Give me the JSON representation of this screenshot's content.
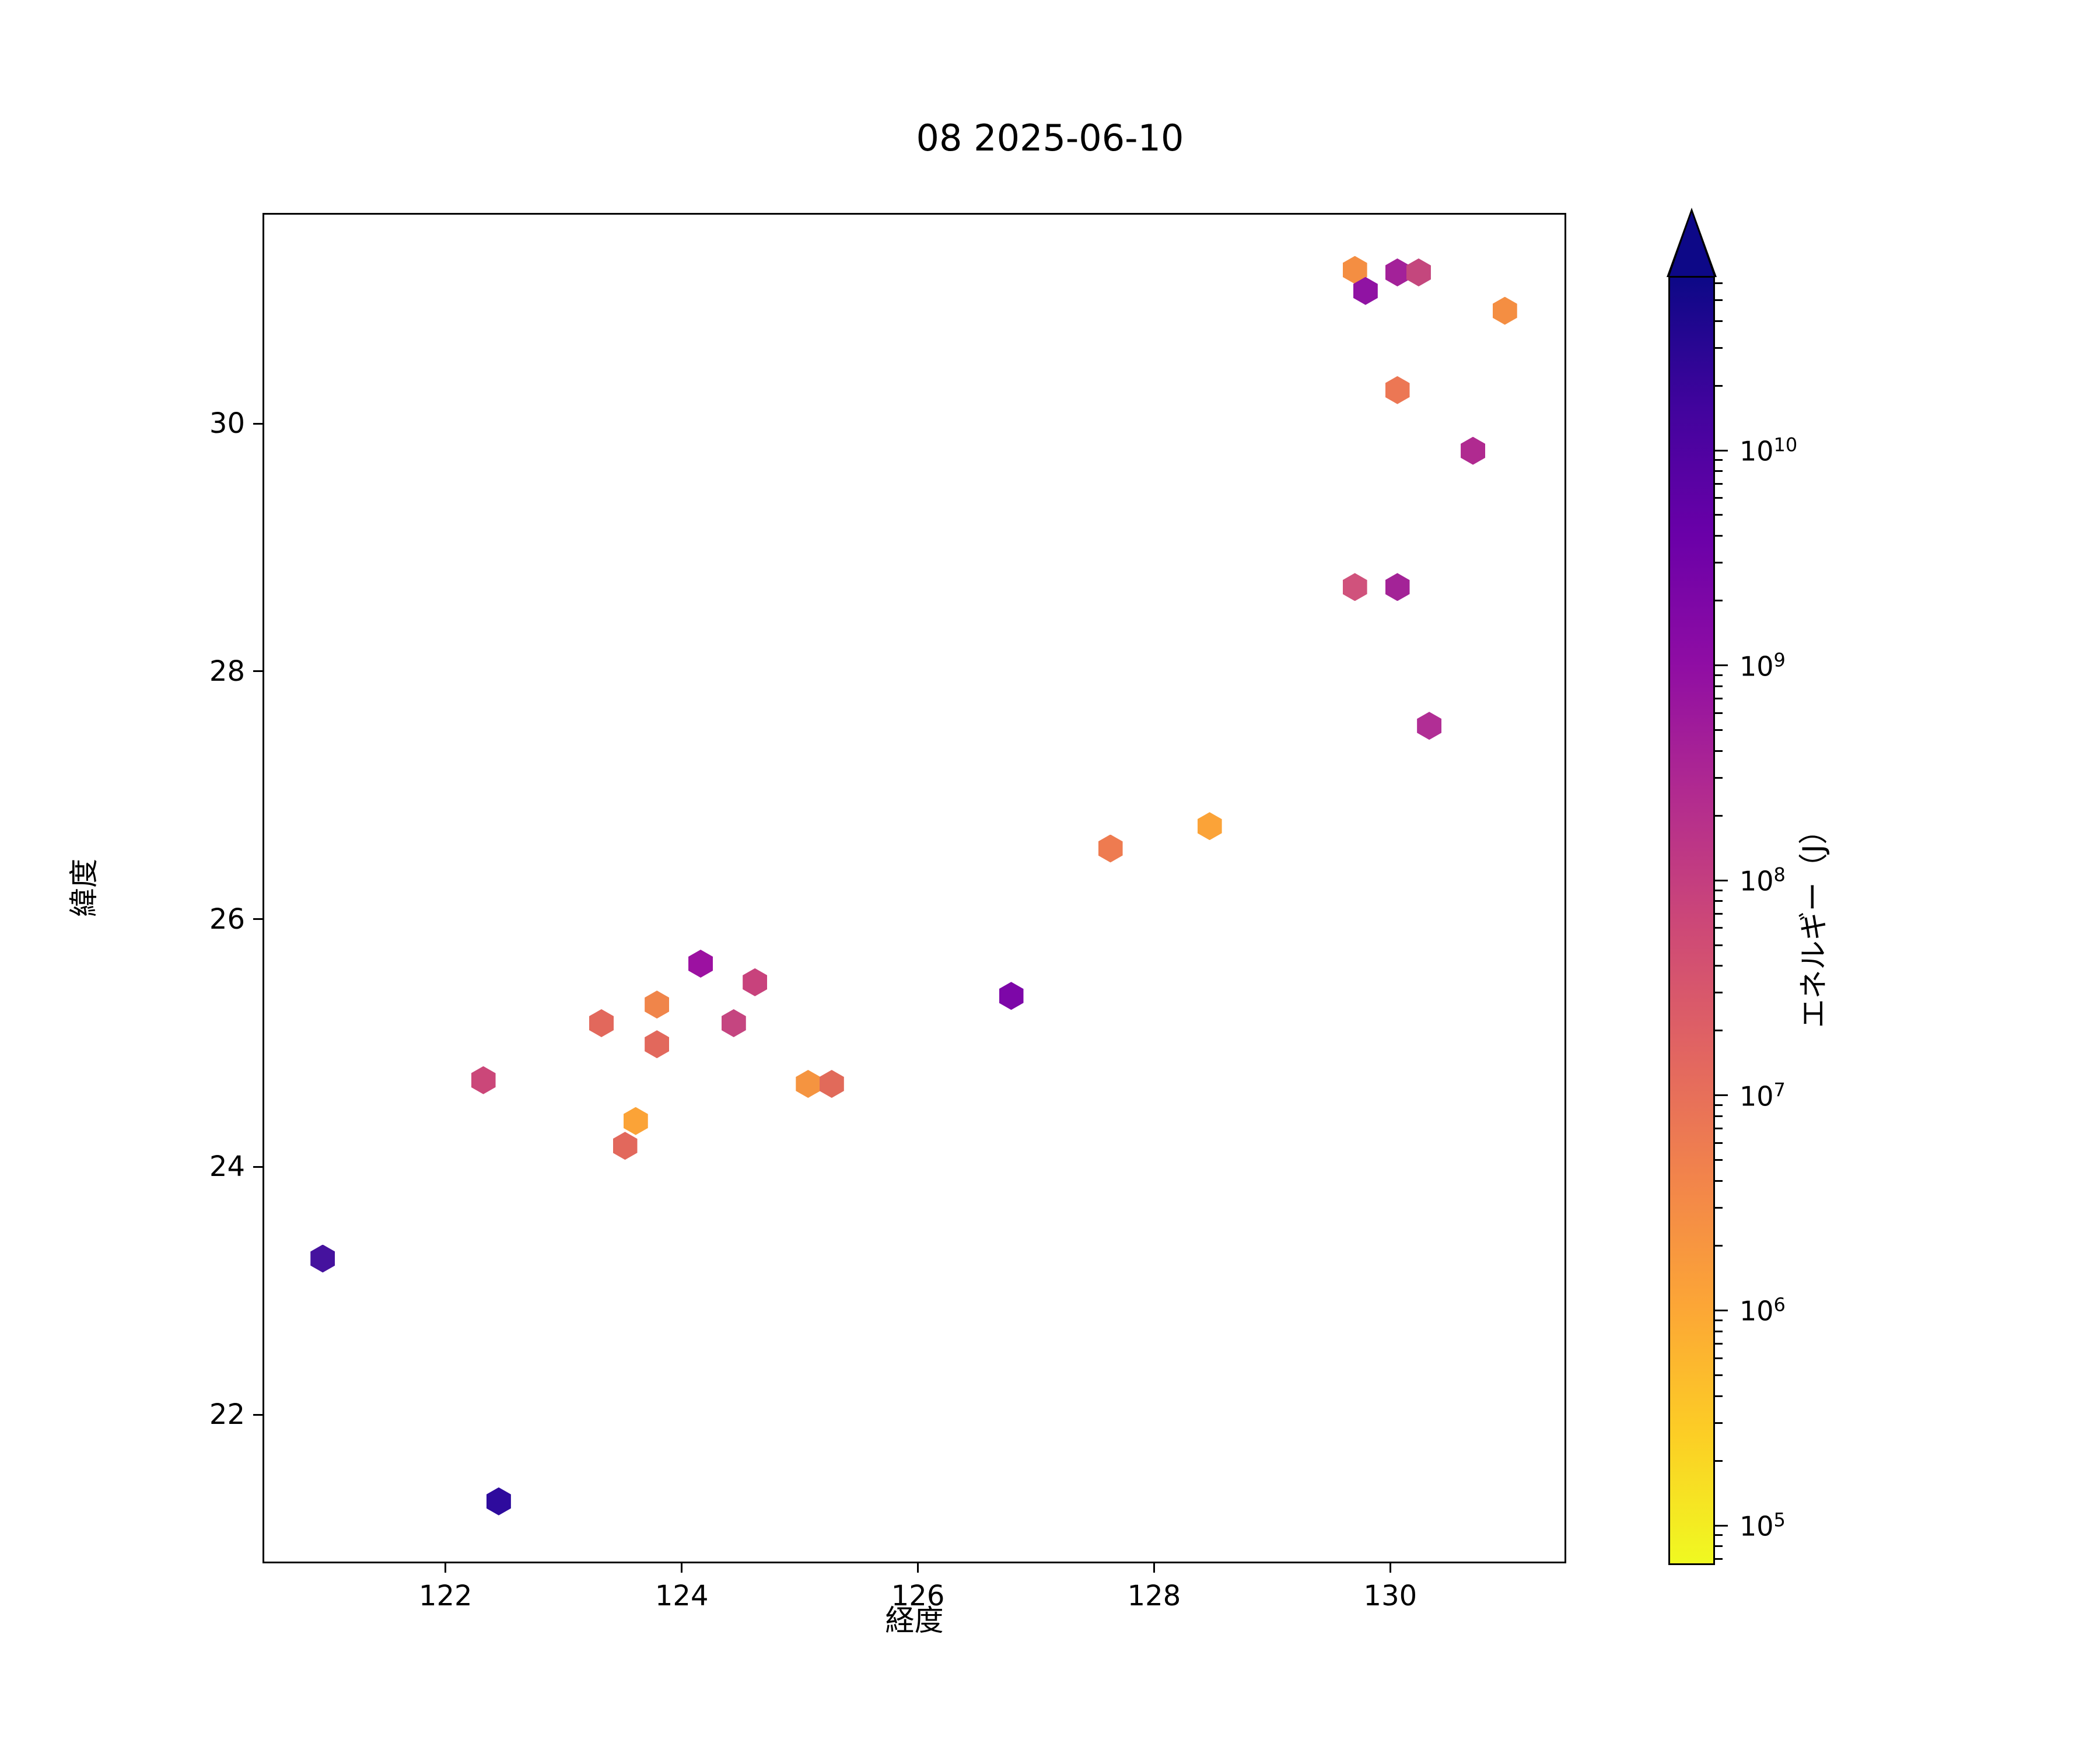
{
  "title": "08 2025-06-10",
  "chart_data": {
    "type": "scatter",
    "marker": "hexagon",
    "title": "08 2025-06-10",
    "xlabel": "経度",
    "ylabel": "緯度",
    "xlim": [
      120.45,
      131.49
    ],
    "ylim": [
      20.8,
      31.7
    ],
    "x_ticks": [
      122,
      124,
      126,
      128,
      130
    ],
    "x_tick_labels": [
      "122",
      "124",
      "126",
      "128",
      "130"
    ],
    "y_ticks": [
      22,
      24,
      26,
      28,
      30
    ],
    "y_tick_labels": [
      "22",
      "24",
      "26",
      "28",
      "30"
    ],
    "grid": false,
    "points": [
      {
        "lon": 129.7,
        "lat": 31.24,
        "color": "#f48e42",
        "energy_j": 1800000.0
      },
      {
        "lon": 129.79,
        "lat": 31.07,
        "color": "#9013a3",
        "energy_j": 1000000000.0
      },
      {
        "lon": 130.06,
        "lat": 31.22,
        "color": "#a32199",
        "energy_j": 600000000.0
      },
      {
        "lon": 130.24,
        "lat": 31.22,
        "color": "#c4477d",
        "energy_j": 100000000.0
      },
      {
        "lon": 130.97,
        "lat": 30.91,
        "color": "#f48e42",
        "energy_j": 1800000.0
      },
      {
        "lon": 130.06,
        "lat": 30.27,
        "color": "#ec7754",
        "energy_j": 6000000.0
      },
      {
        "lon": 130.7,
        "lat": 29.78,
        "color": "#b02a90",
        "energy_j": 250000000.0
      },
      {
        "lon": 129.7,
        "lat": 28.68,
        "color": "#d0527c",
        "energy_j": 50000000.0
      },
      {
        "lon": 130.06,
        "lat": 28.68,
        "color": "#a32397",
        "energy_j": 550000000.0
      },
      {
        "lon": 130.33,
        "lat": 27.56,
        "color": "#b12e95",
        "energy_j": 300000000.0
      },
      {
        "lon": 124.16,
        "lat": 25.64,
        "color": "#9c11a1",
        "energy_j": 800000000.0
      },
      {
        "lon": 124.62,
        "lat": 25.49,
        "color": "#c8427c",
        "energy_j": 85000000.0
      },
      {
        "lon": 123.79,
        "lat": 25.31,
        "color": "#f0854a",
        "energy_j": 4000000.0
      },
      {
        "lon": 123.32,
        "lat": 25.16,
        "color": "#e2685c",
        "energy_j": 13000000.0
      },
      {
        "lon": 124.44,
        "lat": 25.16,
        "color": "#c54580",
        "energy_j": 80000000.0
      },
      {
        "lon": 123.79,
        "lat": 24.99,
        "color": "#e2685c",
        "energy_j": 13000000.0
      },
      {
        "lon": 125.07,
        "lat": 24.67,
        "color": "#f59440",
        "energy_j": 2500000.0
      },
      {
        "lon": 125.27,
        "lat": 24.67,
        "color": "#e16a5a",
        "energy_j": 12000000.0
      },
      {
        "lon": 123.61,
        "lat": 24.37,
        "color": "#fba337",
        "energy_j": 1200000.0
      },
      {
        "lon": 123.52,
        "lat": 24.17,
        "color": "#e2685c",
        "energy_j": 13000000.0
      },
      {
        "lon": 122.32,
        "lat": 24.7,
        "color": "#cb4779",
        "energy_j": 63000000.0
      },
      {
        "lon": 127.63,
        "lat": 26.57,
        "color": "#ee7b50",
        "energy_j": 5000000.0
      },
      {
        "lon": 128.47,
        "lat": 26.75,
        "color": "#fba338",
        "energy_j": 1200000.0
      },
      {
        "lon": 126.79,
        "lat": 25.38,
        "color": "#7d07a8",
        "energy_j": 2000000000.0
      },
      {
        "lon": 120.96,
        "lat": 23.26,
        "color": "#45129e",
        "energy_j": 16000000000.0
      },
      {
        "lon": 122.45,
        "lat": 21.3,
        "color": "#2e0b9d",
        "energy_j": 30000000000.0
      }
    ],
    "colorbar": {
      "label": "エネルギー（J）",
      "scale": "log",
      "extend": "max",
      "colormap": "plasma_r",
      "tick_exponents": [
        5,
        6,
        7,
        8,
        9,
        10
      ],
      "tick_label_base": "10",
      "range_log10": [
        4.82,
        10.81
      ],
      "gradient_stops_bottom_to_top": [
        "#f0f921",
        "#fcce25",
        "#fca636",
        "#f2844b",
        "#e16462",
        "#cc4778",
        "#b12a90",
        "#8f0da4",
        "#6a00a8",
        "#41049d",
        "#0d0887"
      ]
    }
  }
}
